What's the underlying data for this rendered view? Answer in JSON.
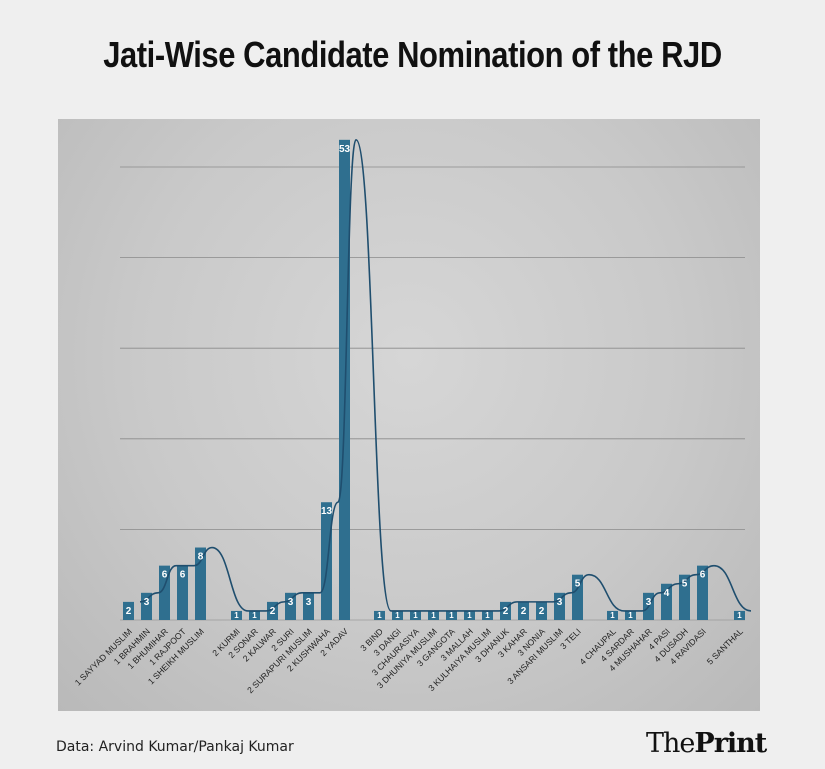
{
  "header": {
    "title": "Jati-Wise Candidate Nomination of the RJD"
  },
  "footer": {
    "source": "Data: Arvind Kumar/Pankaj Kumar",
    "logo_the": "The",
    "logo_print": "Print"
  },
  "colors": {
    "bar": "#2f6f8f",
    "line": "#1f4e6e",
    "grid": "#8a8a8a",
    "label": "#ffffff"
  },
  "chart_data": {
    "type": "bar",
    "title": "Jati-Wise Candidate Nomination of the RJD",
    "ylim": [
      0,
      53
    ],
    "grid": true,
    "overlay": "line",
    "categories": [
      "1 SAYYAD MUSLIM",
      "1 BRAHMIN",
      "1 BHUMIHAR",
      "1 RAJPOOT",
      "1 SHEIKH MUSLIM",
      "2 KURMI",
      "2 SONAR",
      "2 KALWAR",
      "2 SURI",
      "2 SURAPURI MUSLIM",
      "2 KUSHWAHA",
      "2 YADAV",
      "3 BIND",
      "3 DANGI",
      "3 CHAURASIYA",
      "3 DHUNIYA MUSLIM",
      "3 GANGOTA",
      "3 MALLAH",
      "3 KULHAIYA MUSLIM",
      "3 DHANUK",
      "3 KAHAR",
      "3 NONIA",
      "3 ANSARI MUSLIM",
      "3 TELI",
      "4 CHAUPAL",
      "4 SARDAR",
      "4 MUSHAHAR",
      "4 PASI",
      "4 DUSADH",
      "4 RAVIDASI",
      "5 SANTHAL"
    ],
    "values": [
      2,
      3,
      6,
      6,
      8,
      1,
      1,
      2,
      3,
      3,
      13,
      53,
      1,
      1,
      1,
      1,
      1,
      1,
      1,
      2,
      2,
      2,
      3,
      5,
      1,
      1,
      3,
      4,
      5,
      6,
      1
    ],
    "data_labels": [
      "2",
      "3",
      "6",
      "6",
      "8",
      "1",
      "1",
      "2",
      "3",
      "3",
      "13",
      "53",
      "1",
      "1",
      "1",
      "1",
      "1",
      "1",
      "1",
      "2",
      "2",
      "2",
      "3",
      "5",
      "1",
      "1",
      "3",
      "4",
      "5",
      "6",
      "1"
    ]
  }
}
